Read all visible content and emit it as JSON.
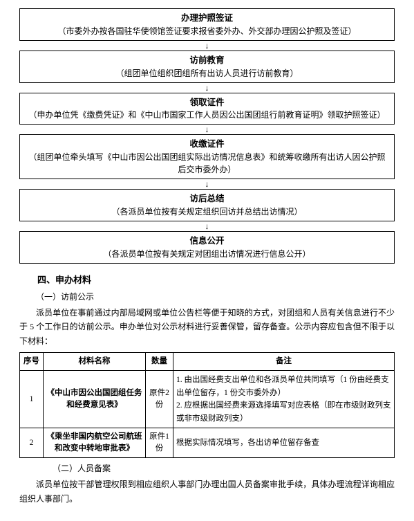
{
  "flowchart": {
    "arrow_glyph": "↓",
    "steps": [
      {
        "title": "办理护照签证",
        "desc": "（市委外办按各国驻华使领馆签证要求报省委外办、外交部办理因公护照及签证）"
      },
      {
        "title": "访前教育",
        "desc": "（组团单位组织团组所有出访人员进行访前教育）"
      },
      {
        "title": "领取证件",
        "desc": "（申办单位凭《缴费凭证》和《中山市国家工作人员因公出国团组行前教育证明》领取护照签证）"
      },
      {
        "title": "收缴证件",
        "desc": "（组团单位牵头填写《中山市因公出国团组实际出访情况信息表》和统筹收缴所有出访人因公护照后交市委外办）"
      },
      {
        "title": "访后总结",
        "desc": "（各派员单位按有关规定组织回访并总结出访情况）"
      },
      {
        "title": "信息公开",
        "desc": "（各派员单位按有关规定对团组出访情况进行信息公开）"
      }
    ]
  },
  "section4": {
    "heading": "四、申办材料",
    "sub1": {
      "heading": "（一）访前公示",
      "para": "派员单位在事前通过内部局域网或单位公告栏等便于知晓的方式，对团组和人员有关信息进行不少于 5 个工作日的访前公示。申办单位对公示材料进行妥善保管，留存备查。公示内容应包含但不限于以下材料：",
      "table": {
        "columns": [
          "序号",
          "材料名称",
          "数量",
          "备注"
        ],
        "rows": [
          {
            "seq": "1",
            "name": "《中山市因公出国团组任务和经费意见表》",
            "qty": "原件2 份",
            "note": "1. 由出国经费支出单位和各派员单位共同填写（1 份由经费支出单位留存，1 份交市委外办）\n2. 应根据出国经费来源选择填写对应表格（即在市级财政列支或非市级财政列支）"
          },
          {
            "seq": "2",
            "name": "《乘坐非国内航空公司航班和改变中转地审批表》",
            "qty": "原件1 份",
            "note": "根据实际情况填写，各出访单位留存备查"
          }
        ]
      }
    },
    "sub2": {
      "heading": "（二）人员备案",
      "para": "派员单位按干部管理权限到相应组织人事部门办理出国人员备案审批手续，具体办理流程详询相应组织人事部门。"
    }
  }
}
